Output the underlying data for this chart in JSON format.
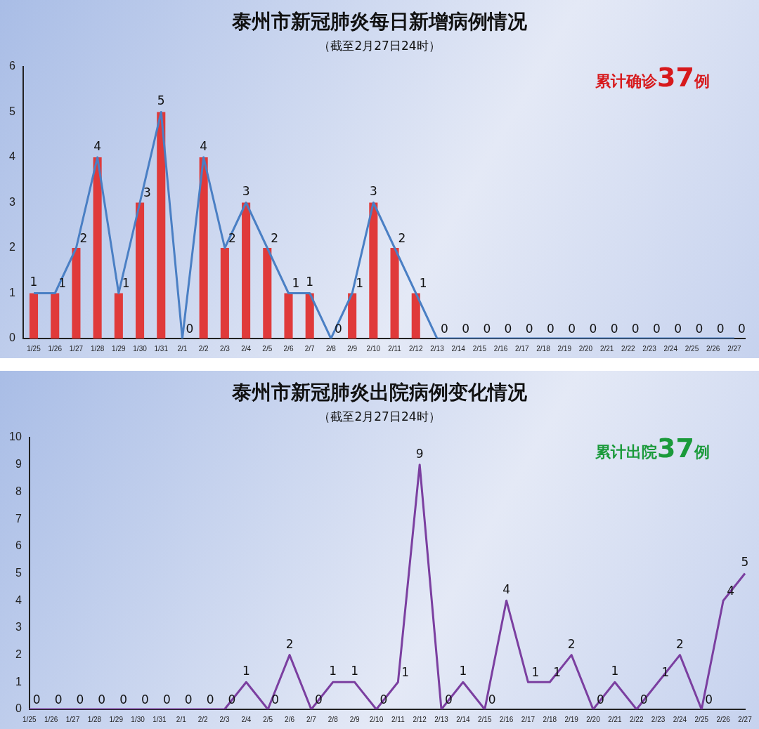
{
  "chart_data": [
    {
      "type": "bar",
      "title": "泰州市新冠肺炎每日新增病例情况",
      "subtitle": "（截至2月27日24时）",
      "annotations": [
        "累计确诊37例"
      ],
      "categories": [
        "1/25",
        "1/26",
        "1/27",
        "1/28",
        "1/29",
        "1/30",
        "1/31",
        "2/1",
        "2/2",
        "2/3",
        "2/4",
        "2/5",
        "2/6",
        "2/7",
        "2/8",
        "2/9",
        "2/10",
        "2/11",
        "2/12",
        "2/13",
        "2/14",
        "2/15",
        "2/16",
        "2/17",
        "2/18",
        "2/19",
        "2/20",
        "2/21",
        "2/22",
        "2/23",
        "2/24",
        "2/25",
        "2/26",
        "2/27"
      ],
      "series": [
        {
          "type": "bar",
          "color": "#e03a3a",
          "values": [
            1,
            1,
            2,
            4,
            1,
            3,
            5,
            0,
            4,
            2,
            3,
            2,
            1,
            1,
            0,
            1,
            3,
            2,
            1,
            0,
            0,
            0,
            0,
            0,
            0,
            0,
            0,
            0,
            0,
            0,
            0,
            0,
            0,
            0
          ],
          "value_labels": [
            "1",
            "1",
            "2",
            "4",
            "1",
            "3",
            "5",
            "0",
            "4",
            "2",
            "3",
            "2",
            "1",
            "1",
            "0",
            "1",
            "3",
            "2",
            "1",
            "0",
            "0",
            "0",
            "0",
            "0",
            "0",
            "0",
            "0",
            "0",
            "0",
            "0",
            "0",
            "0",
            "0",
            "0"
          ]
        },
        {
          "type": "line",
          "color": "#4a7fc4",
          "values": [
            1,
            1,
            2,
            4,
            1,
            3,
            5,
            0,
            4,
            2,
            3,
            2,
            1,
            1,
            0,
            1,
            3,
            2,
            1,
            0,
            0,
            0,
            0,
            0,
            0,
            0,
            0,
            0,
            0,
            0,
            0,
            0,
            0,
            0
          ]
        }
      ],
      "ylim": [
        0,
        6
      ],
      "yticks": [
        0,
        1,
        2,
        3,
        4,
        5,
        6
      ]
    },
    {
      "type": "line",
      "title": "泰州市新冠肺炎出院病例变化情况",
      "subtitle": "（截至2月27日24时）",
      "annotations": [
        "累计出院37例"
      ],
      "categories": [
        "1/25",
        "1/26",
        "1/27",
        "1/28",
        "1/29",
        "1/30",
        "1/31",
        "2/1",
        "2/2",
        "2/3",
        "2/4",
        "2/5",
        "2/6",
        "2/7",
        "2/8",
        "2/9",
        "2/10",
        "2/11",
        "2/12",
        "2/13",
        "2/14",
        "2/15",
        "2/16",
        "2/17",
        "2/18",
        "2/19",
        "2/20",
        "2/21",
        "2/22",
        "2/23",
        "2/24",
        "2/25",
        "2/26",
        "2/27"
      ],
      "series": [
        {
          "color": "#7b3fa0",
          "values": [
            0,
            0,
            0,
            0,
            0,
            0,
            0,
            0,
            0,
            0,
            1,
            0,
            2,
            0,
            1,
            1,
            0,
            1,
            9,
            0,
            1,
            0,
            4,
            1,
            1,
            2,
            0,
            1,
            0,
            1,
            2,
            0,
            4,
            5
          ]
        }
      ],
      "ylim": [
        0,
        10
      ],
      "yticks": [
        0,
        1,
        2,
        3,
        4,
        5,
        6,
        7,
        8,
        9,
        10
      ],
      "data_labels": true
    }
  ]
}
